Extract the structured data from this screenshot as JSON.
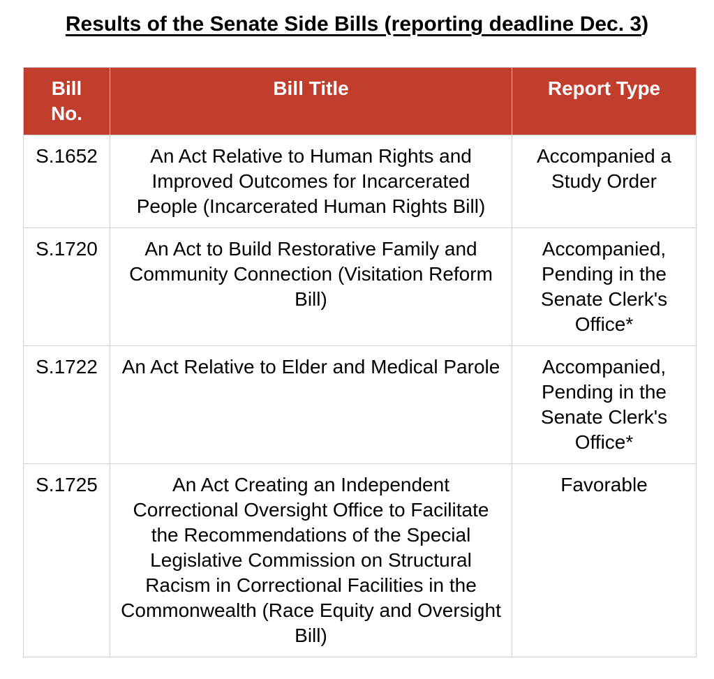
{
  "page": {
    "title": {
      "underlined": "Results of the Senate Side Bills (reporting deadline Dec. 3",
      "suffix": ")"
    }
  },
  "table": {
    "columns": [
      "Bill No.",
      "Bill Title",
      "Report Type"
    ],
    "rows": [
      {
        "bill_no": "S.1652",
        "bill_title": "An Act Relative to Human Rights and Improved Outcomes for Incarcerated People (Incarcerated Human Rights Bill)",
        "report_type": "Accompanied a Study Order"
      },
      {
        "bill_no": "S.1720",
        "bill_title": "An Act to Build Restorative Family and Community Connection (Visitation Reform Bill)",
        "report_type": "Accompanied, Pending in the Senate Clerk's Office*"
      },
      {
        "bill_no": "S.1722",
        "bill_title": "An Act Relative to Elder and Medical Parole",
        "report_type": "Accompanied, Pending in the Senate Clerk's Office*"
      },
      {
        "bill_no": "S.1725",
        "bill_title": "An Act Creating an Independent Correctional Oversight Office to Facilitate the Recommendations of the Special Legislative Commission on Structural Racism in Correctional Facilities in the Commonwealth (Race Equity and Oversight Bill)",
        "report_type": "Favorable"
      }
    ]
  },
  "colors": {
    "header_bg": "#C13E2D",
    "header_text": "#FFFFFF",
    "border": "#CFCFCF",
    "text": "#000000"
  }
}
